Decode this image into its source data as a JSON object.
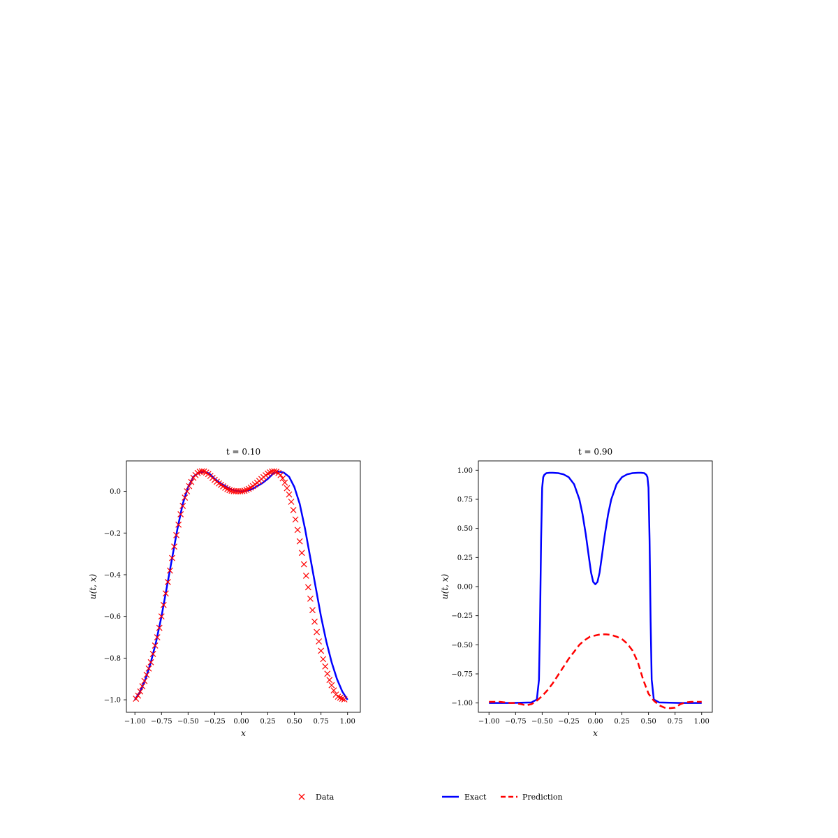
{
  "chart_data": [
    {
      "type": "line",
      "title": "t = 0.10",
      "xlabel": "x",
      "ylabel": "u(t, x)",
      "xlim": [
        -1.08,
        1.12
      ],
      "ylim": [
        -1.06,
        0.146
      ],
      "xticks": [
        -1.0,
        -0.75,
        -0.5,
        -0.25,
        0.0,
        0.25,
        0.5,
        0.75,
        1.0
      ],
      "xtick_labels": [
        "−1.00",
        "−0.75",
        "−0.50",
        "−0.25",
        "0.00",
        "0.25",
        "0.50",
        "0.75",
        "1.00"
      ],
      "yticks": [
        0.0,
        -0.2,
        -0.4,
        -0.6,
        -0.8,
        -1.0
      ],
      "ytick_labels": [
        "0.0",
        "−0.2",
        "−0.4",
        "−0.6",
        "−0.8",
        "−1.0"
      ],
      "series": [
        {
          "name": "Exact",
          "style": "solid",
          "color": "#0000ff",
          "x": [
            -1.0,
            -0.95,
            -0.9,
            -0.85,
            -0.8,
            -0.75,
            -0.7,
            -0.65,
            -0.6,
            -0.55,
            -0.5,
            -0.45,
            -0.4,
            -0.35,
            -0.3,
            -0.25,
            -0.2,
            -0.15,
            -0.1,
            -0.05,
            0.0,
            0.05,
            0.1,
            0.15,
            0.2,
            0.25,
            0.3,
            0.35,
            0.4,
            0.45,
            0.5,
            0.55,
            0.6,
            0.65,
            0.7,
            0.75,
            0.8,
            0.85,
            0.9,
            0.95,
            1.0
          ],
          "y": [
            -1.0,
            -0.96,
            -0.9,
            -0.82,
            -0.72,
            -0.6,
            -0.46,
            -0.32,
            -0.18,
            -0.06,
            0.02,
            0.07,
            0.09,
            0.095,
            0.085,
            0.06,
            0.04,
            0.025,
            0.01,
            0.002,
            0.0,
            0.002,
            0.01,
            0.025,
            0.04,
            0.06,
            0.085,
            0.095,
            0.09,
            0.07,
            0.02,
            -0.06,
            -0.18,
            -0.32,
            -0.46,
            -0.6,
            -0.72,
            -0.82,
            -0.9,
            -0.96,
            -1.0
          ]
        },
        {
          "name": "Data",
          "style": "marker-x",
          "color": "#ff0000",
          "x": [
            -0.99,
            -0.97,
            -0.95,
            -0.93,
            -0.91,
            -0.89,
            -0.87,
            -0.85,
            -0.83,
            -0.81,
            -0.79,
            -0.77,
            -0.75,
            -0.73,
            -0.71,
            -0.69,
            -0.67,
            -0.65,
            -0.63,
            -0.61,
            -0.59,
            -0.57,
            -0.55,
            -0.53,
            -0.51,
            -0.49,
            -0.47,
            -0.45,
            -0.43,
            -0.41,
            -0.39,
            -0.37,
            -0.35,
            -0.33,
            -0.31,
            -0.29,
            -0.27,
            -0.25,
            -0.23,
            -0.21,
            -0.19,
            -0.17,
            -0.15,
            -0.13,
            -0.11,
            -0.09,
            -0.07,
            -0.05,
            -0.03,
            -0.01,
            0.01,
            0.03,
            0.05,
            0.07,
            0.09,
            0.11,
            0.13,
            0.15,
            0.17,
            0.19,
            0.21,
            0.23,
            0.25,
            0.27,
            0.29,
            0.31,
            0.33,
            0.35,
            0.37,
            0.39,
            0.41,
            0.43,
            0.45,
            0.47,
            0.49,
            0.51,
            0.53,
            0.55,
            0.57,
            0.59,
            0.61,
            0.63,
            0.65,
            0.67,
            0.69,
            0.71,
            0.73,
            0.75,
            0.77,
            0.79,
            0.81,
            0.83,
            0.85,
            0.87,
            0.89,
            0.91,
            0.93,
            0.95,
            0.97
          ],
          "y": [
            -0.995,
            -0.98,
            -0.96,
            -0.935,
            -0.91,
            -0.88,
            -0.85,
            -0.82,
            -0.78,
            -0.74,
            -0.7,
            -0.655,
            -0.6,
            -0.545,
            -0.49,
            -0.435,
            -0.38,
            -0.32,
            -0.265,
            -0.21,
            -0.16,
            -0.11,
            -0.07,
            -0.03,
            0.0,
            0.025,
            0.045,
            0.065,
            0.078,
            0.088,
            0.094,
            0.096,
            0.095,
            0.09,
            0.083,
            0.074,
            0.064,
            0.055,
            0.046,
            0.038,
            0.031,
            0.024,
            0.017,
            0.011,
            0.006,
            0.003,
            0.001,
            0.0,
            0.0,
            0.0,
            0.001,
            0.003,
            0.007,
            0.012,
            0.018,
            0.025,
            0.033,
            0.041,
            0.05,
            0.059,
            0.068,
            0.077,
            0.085,
            0.091,
            0.095,
            0.096,
            0.094,
            0.088,
            0.078,
            0.062,
            0.042,
            0.015,
            -0.015,
            -0.05,
            -0.09,
            -0.135,
            -0.185,
            -0.24,
            -0.295,
            -0.35,
            -0.405,
            -0.46,
            -0.515,
            -0.57,
            -0.625,
            -0.675,
            -0.72,
            -0.765,
            -0.805,
            -0.84,
            -0.875,
            -0.905,
            -0.93,
            -0.955,
            -0.975,
            -0.985,
            -0.99,
            -0.995,
            -0.998
          ]
        }
      ]
    },
    {
      "type": "line",
      "title": "t = 0.90",
      "xlabel": "x",
      "ylabel": "u(t, x)",
      "xlim": [
        -1.1,
        1.1
      ],
      "ylim": [
        -1.08,
        1.08
      ],
      "xticks": [
        -1.0,
        -0.75,
        -0.5,
        -0.25,
        0.0,
        0.25,
        0.5,
        0.75,
        1.0
      ],
      "xtick_labels": [
        "−1.00",
        "−0.75",
        "−0.50",
        "−0.25",
        "0.00",
        "0.25",
        "0.50",
        "0.75",
        "1.00"
      ],
      "yticks": [
        1.0,
        0.75,
        0.5,
        0.25,
        0.0,
        -0.25,
        -0.5,
        -0.75,
        -1.0
      ],
      "ytick_labels": [
        "1.00",
        "0.75",
        "0.50",
        "0.25",
        "0.00",
        "−0.25",
        "−0.50",
        "−0.75",
        "−1.00"
      ],
      "series": [
        {
          "name": "Exact",
          "style": "solid",
          "color": "#0000ff",
          "x": [
            -1.0,
            -0.8,
            -0.6,
            -0.55,
            -0.53,
            -0.52,
            -0.51,
            -0.5,
            -0.49,
            -0.48,
            -0.46,
            -0.43,
            -0.4,
            -0.35,
            -0.3,
            -0.25,
            -0.2,
            -0.15,
            -0.12,
            -0.09,
            -0.06,
            -0.04,
            -0.02,
            0.0,
            0.02,
            0.04,
            0.06,
            0.09,
            0.12,
            0.15,
            0.2,
            0.25,
            0.3,
            0.35,
            0.4,
            0.43,
            0.46,
            0.48,
            0.49,
            0.5,
            0.51,
            0.52,
            0.53,
            0.55,
            0.6,
            0.8,
            1.0
          ],
          "y": [
            -1.0,
            -1.0,
            -0.995,
            -0.97,
            -0.8,
            -0.3,
            0.4,
            0.85,
            0.94,
            0.96,
            0.975,
            0.978,
            0.978,
            0.975,
            0.965,
            0.94,
            0.88,
            0.75,
            0.62,
            0.45,
            0.25,
            0.12,
            0.04,
            0.02,
            0.04,
            0.12,
            0.25,
            0.45,
            0.62,
            0.75,
            0.88,
            0.94,
            0.965,
            0.975,
            0.978,
            0.978,
            0.975,
            0.96,
            0.94,
            0.85,
            0.4,
            -0.3,
            -0.8,
            -0.97,
            -0.995,
            -1.0,
            -1.0
          ]
        },
        {
          "name": "Prediction",
          "style": "dashed",
          "color": "#ff0000",
          "x": [
            -1.0,
            -0.9,
            -0.8,
            -0.75,
            -0.7,
            -0.65,
            -0.6,
            -0.55,
            -0.5,
            -0.45,
            -0.4,
            -0.35,
            -0.3,
            -0.25,
            -0.2,
            -0.15,
            -0.1,
            -0.05,
            0.0,
            0.05,
            0.1,
            0.15,
            0.2,
            0.25,
            0.3,
            0.35,
            0.4,
            0.45,
            0.5,
            0.55,
            0.6,
            0.65,
            0.7,
            0.75,
            0.8,
            0.85,
            0.9,
            0.95,
            1.0
          ],
          "y": [
            -0.99,
            -0.99,
            -1.0,
            -1.0,
            -1.01,
            -1.02,
            -1.01,
            -0.98,
            -0.94,
            -0.89,
            -0.83,
            -0.76,
            -0.69,
            -0.62,
            -0.56,
            -0.5,
            -0.46,
            -0.43,
            -0.42,
            -0.41,
            -0.41,
            -0.415,
            -0.43,
            -0.45,
            -0.49,
            -0.55,
            -0.65,
            -0.8,
            -0.92,
            -0.98,
            -1.02,
            -1.04,
            -1.045,
            -1.04,
            -1.01,
            -0.995,
            -0.99,
            -0.99,
            -0.99
          ]
        }
      ]
    }
  ],
  "legend_left": {
    "label": "Data"
  },
  "legend_right": {
    "label_exact": "Exact",
    "label_pred": "Prediction"
  }
}
